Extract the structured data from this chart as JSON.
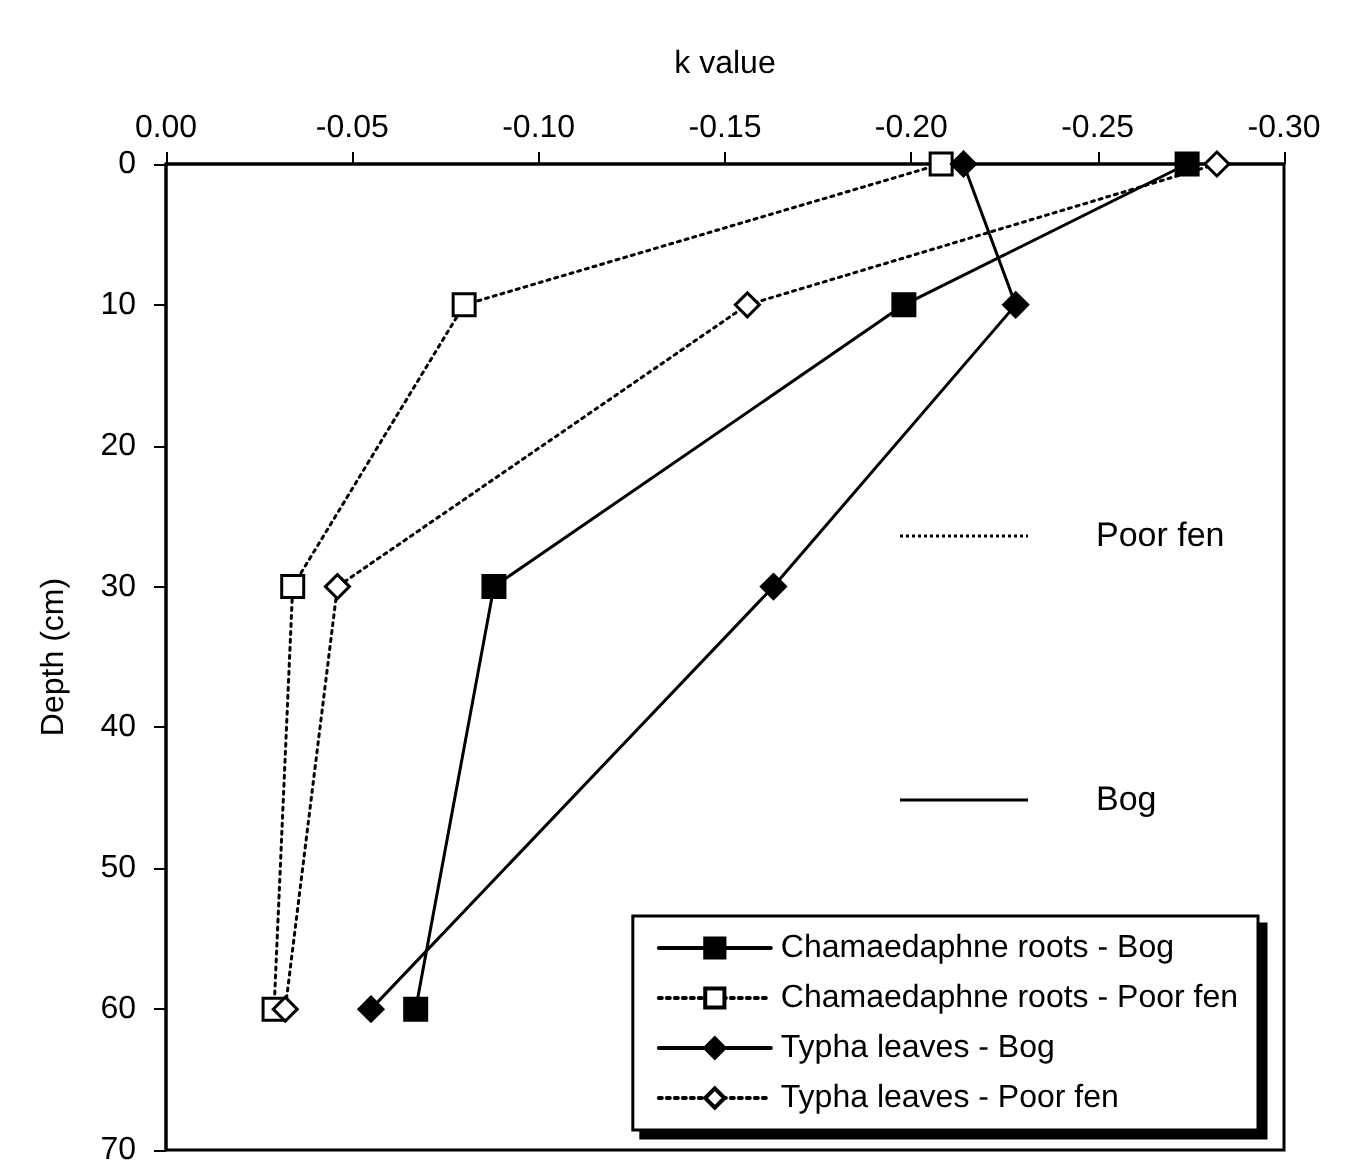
{
  "chart_data": {
    "type": "line",
    "xlabel": "k value",
    "ylabel": "Depth (cm)",
    "xlim": [
      0,
      -0.3
    ],
    "xticks": [
      {
        "value": 0,
        "label": "0.00"
      },
      {
        "value": -0.05,
        "label": "-0.05"
      },
      {
        "value": -0.1,
        "label": "-0.10"
      },
      {
        "value": -0.15,
        "label": "-0.15"
      },
      {
        "value": -0.2,
        "label": "-0.20"
      },
      {
        "value": -0.25,
        "label": "-0.25"
      },
      {
        "value": -0.3,
        "label": "-0.30"
      }
    ],
    "ylim": [
      70,
      0
    ],
    "yticks": [
      0,
      10,
      20,
      30,
      40,
      50,
      60,
      70
    ],
    "grid": false,
    "legend": "bottom right",
    "annotations": [
      "Poor fen",
      "Bog"
    ],
    "series": [
      {
        "name": "Chamaedaphne roots - Bog",
        "color": "#000000",
        "marker": "square",
        "line_style": "solid",
        "x": [
          -0.274,
          -0.198,
          -0.088,
          -0.067
        ],
        "values": [
          0,
          10,
          30,
          60
        ]
      },
      {
        "name": "Chamaedaphne roots - Poor fen",
        "color": "#000000",
        "marker": "square",
        "line_style": "dotted",
        "x": [
          -0.208,
          -0.08,
          -0.034,
          -0.029
        ],
        "values": [
          0,
          10,
          30,
          60
        ]
      },
      {
        "name": "Typha leaves - Bog",
        "color": "#000000",
        "marker": "diamond",
        "line_style": "solid",
        "x": [
          -0.214,
          -0.228,
          -0.163,
          -0.055
        ],
        "values": [
          0,
          10,
          30,
          60
        ]
      },
      {
        "name": "Typha leaves - Poor fen",
        "color": "#000000",
        "marker": "diamond",
        "line_style": "dotted",
        "x": [
          -0.282,
          -0.156,
          -0.046,
          -0.032
        ],
        "values": [
          0,
          10,
          30,
          60
        ]
      }
    ]
  }
}
